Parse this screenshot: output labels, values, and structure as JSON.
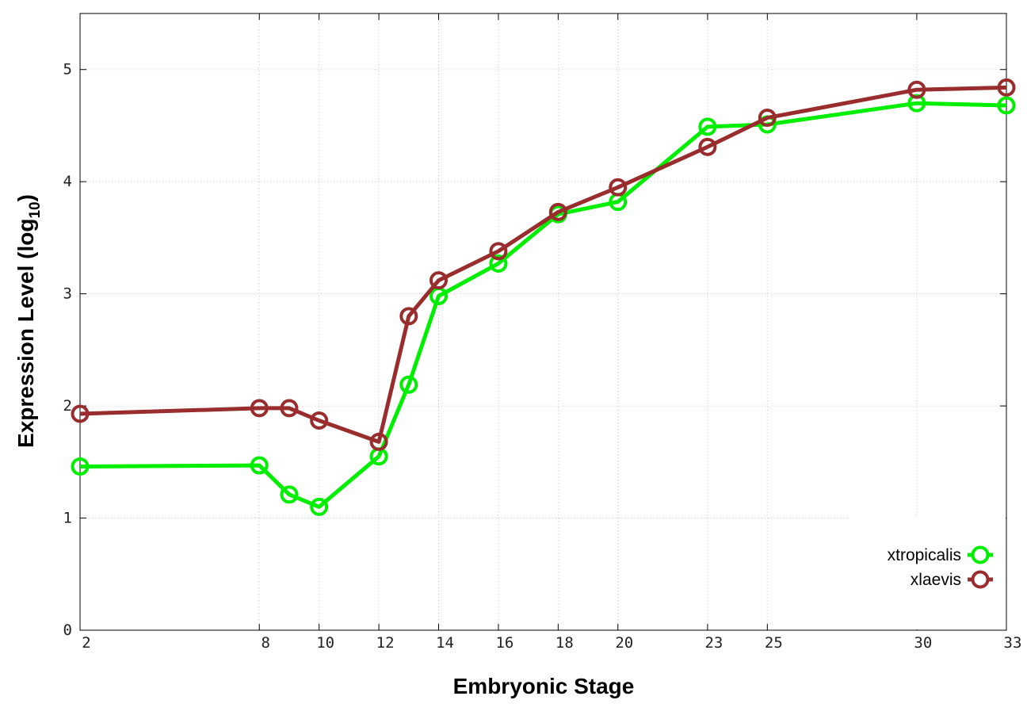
{
  "chart_data": {
    "type": "line",
    "xlabel": "Embryonic Stage",
    "ylabel_main": "Expression Level (log",
    "ylabel_sub": "10",
    "ylabel_close": ")",
    "ylim": [
      0,
      5.5
    ],
    "yticks": [
      0,
      1,
      2,
      3,
      4,
      5
    ],
    "categories": [
      "2",
      "8",
      "9",
      "10",
      "12",
      "13",
      "14",
      "16",
      "18",
      "20",
      "23",
      "25",
      "30",
      "33"
    ],
    "xtick_labels": [
      "2",
      "8",
      "10",
      "12",
      "14",
      "16",
      "18",
      "20",
      "23",
      "25",
      "30",
      "33"
    ],
    "grid": true,
    "legend_position": "bottom-right",
    "series": [
      {
        "name": "xtropicalis",
        "color": "#00ee00",
        "values": [
          1.46,
          1.47,
          1.21,
          1.1,
          1.55,
          2.19,
          2.98,
          3.27,
          3.71,
          3.82,
          4.49,
          4.51,
          4.7,
          4.68
        ]
      },
      {
        "name": "xlaevis",
        "color": "#992d2d",
        "values": [
          1.93,
          1.98,
          1.98,
          1.87,
          1.68,
          2.8,
          3.12,
          3.38,
          3.73,
          3.95,
          4.31,
          4.57,
          4.82,
          4.84
        ]
      }
    ]
  }
}
